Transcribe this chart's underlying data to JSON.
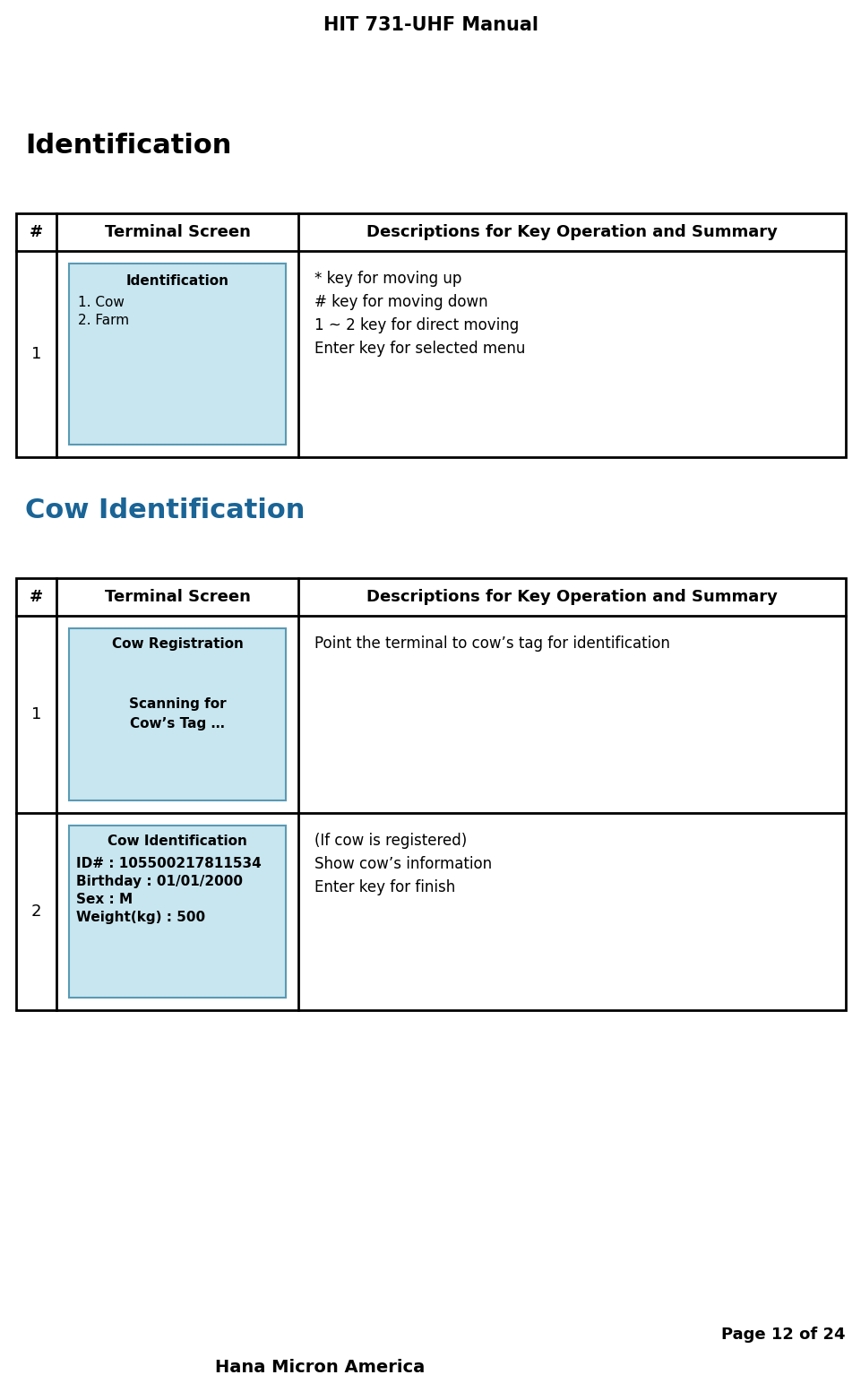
{
  "page_title": "HIT 731-UHF Manual",
  "footer_company": "Hana Micron America",
  "footer_page": "Page 12 of 24",
  "section1_title": "Identification",
  "section2_title": "Cow Identification",
  "section1_title_color": "#000000",
  "section2_title_color": "#1a6496",
  "bg_color": "#ffffff",
  "table_border_color": "#000000",
  "screen_bg_color": "#c8e6f0",
  "screen_border_color": "#5a9ab5",
  "table1": {
    "header": [
      "#",
      "Terminal Screen",
      "Descriptions for Key Operation and Summary"
    ],
    "rows": [
      {
        "num": "1",
        "screen_title": "Identification",
        "screen_lines": [
          "1. Cow",
          "2. Farm"
        ],
        "desc_lines": [
          "* key for moving up",
          "# key for moving down",
          "1 ~ 2 key for direct moving",
          "Enter key for selected menu"
        ]
      }
    ]
  },
  "table2": {
    "header": [
      "#",
      "Terminal Screen",
      "Descriptions for Key Operation and Summary"
    ],
    "rows": [
      {
        "num": "1",
        "screen_title": "Cow Registration",
        "screen_lines": [
          "",
          "Scanning for",
          "Cow’s Tag …"
        ],
        "desc_lines": [
          "Point the terminal to cow’s tag for identification"
        ]
      },
      {
        "num": "2",
        "screen_title": "Cow Identification",
        "screen_lines": [
          "ID# : 105500217811534",
          "Birthday : 01/01/2000",
          "Sex : M",
          "Weight(kg) : 500"
        ],
        "desc_lines": [
          "(If cow is registered)",
          "Show cow’s information",
          "Enter key for finish"
        ]
      }
    ]
  }
}
